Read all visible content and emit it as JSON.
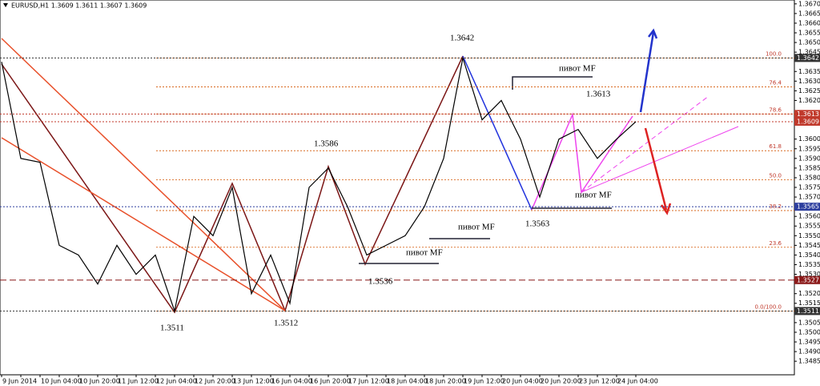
{
  "chart_data": {
    "type": "line",
    "title": "EURUSD,H1  1.3609 1.3611 1.3607 1.3609",
    "x": [
      "9 Jun 2014",
      null,
      "10 Jun 04:00",
      null,
      "10 Jun 20:00",
      null,
      "11 Jun 12:00",
      null,
      "12 Jun 04:00",
      null,
      "12 Jun 20:00",
      null,
      "13 Jun 12:00",
      null,
      "16 Jun 04:00",
      null,
      "16 Jun 20:00",
      null,
      "17 Jun 12:00",
      null,
      "18 Jun 04:00",
      null,
      "18 Jun 20:00",
      null,
      "19 Jun 12:00",
      null,
      "20 Jun 04:00",
      null,
      "20 Jun 20:00",
      null,
      "23 Jun 12:00",
      null,
      "24 Jun 04:00",
      null
    ],
    "series": [
      {
        "name": "EURUSD,H1",
        "color": "#000000",
        "values": [
          1.364,
          1.359,
          1.3588,
          1.3545,
          1.354,
          1.3525,
          1.3545,
          1.353,
          1.354,
          1.3511,
          1.356,
          1.355,
          1.3575,
          1.352,
          1.354,
          1.3515,
          1.3575,
          1.3585,
          1.3565,
          1.354,
          1.3545,
          1.355,
          1.3565,
          1.359,
          1.3642,
          1.361,
          1.362,
          1.36,
          1.357,
          1.36,
          1.3605,
          1.359,
          1.36,
          1.3609
        ]
      }
    ],
    "ylim": [
      1.3478,
      1.3672
    ],
    "yticks": [
      {
        "value": 1.367,
        "label": "1.3670"
      },
      {
        "value": 1.3665,
        "label": "1.3665"
      },
      {
        "value": 1.366,
        "label": "1.3660"
      },
      {
        "value": 1.3655,
        "label": "1.3655"
      },
      {
        "value": 1.365,
        "label": "1.3650"
      },
      {
        "value": 1.3645,
        "label": "1.3645"
      },
      {
        "value": 1.3635,
        "label": "1.3635"
      },
      {
        "value": 1.363,
        "label": "1.3630"
      },
      {
        "value": 1.3625,
        "label": "1.3625"
      },
      {
        "value": 1.362,
        "label": "1.3620"
      },
      {
        "value": 1.36,
        "label": "1.3600"
      },
      {
        "value": 1.3595,
        "label": "1.3595"
      },
      {
        "value": 1.359,
        "label": "1.3590"
      },
      {
        "value": 1.3585,
        "label": "1.3585"
      },
      {
        "value": 1.358,
        "label": "1.3580"
      },
      {
        "value": 1.3575,
        "label": "1.3575"
      },
      {
        "value": 1.357,
        "label": "1.3570"
      },
      {
        "value": 1.356,
        "label": "1.3560"
      },
      {
        "value": 1.3555,
        "label": "1.3555"
      },
      {
        "value": 1.355,
        "label": "1.3550"
      },
      {
        "value": 1.3545,
        "label": "1.3545"
      },
      {
        "value": 1.354,
        "label": "1.3540"
      },
      {
        "value": 1.3535,
        "label": "1.3535"
      },
      {
        "value": 1.353,
        "label": "1.3530"
      },
      {
        "value": 1.352,
        "label": "1.3520"
      },
      {
        "value": 1.3515,
        "label": "1.3515"
      },
      {
        "value": 1.3505,
        "label": "1.3505"
      },
      {
        "value": 1.35,
        "label": "1.3500"
      },
      {
        "value": 1.3495,
        "label": "1.3495"
      },
      {
        "value": 1.349,
        "label": "1.3490"
      },
      {
        "value": 1.3485,
        "label": "1.3485"
      }
    ],
    "price_lines": [
      {
        "value": 1.3642,
        "color": "#333333"
      },
      {
        "value": 1.3613,
        "color": "#c0392b"
      },
      {
        "value": 1.3609,
        "color": "#c0392b"
      },
      {
        "value": 1.3565,
        "color": "#2c3e9e"
      },
      {
        "value": 1.3527,
        "color": "#8b1a1a"
      },
      {
        "value": 1.3511,
        "color": "#333333"
      }
    ],
    "fib_levels": [
      {
        "value": 1.3642,
        "label": "100.0"
      },
      {
        "value": 1.3627,
        "label": "76.4"
      },
      {
        "value": 1.3613,
        "label": "78.6"
      },
      {
        "value": 1.3594,
        "label": "61.8"
      },
      {
        "value": 1.3579,
        "label": "50.0"
      },
      {
        "value": 1.3563,
        "label": "38.2"
      },
      {
        "value": 1.3544,
        "label": "23.6"
      },
      {
        "value": 1.3511,
        "label": "0.0/100.0"
      }
    ],
    "annotations": [
      "1.3642",
      "1.3613",
      "1.3586",
      "1.3563",
      "1.3536",
      "1.3511",
      "1.3512",
      "пивот MF",
      "пивот MF",
      "пивот MF",
      "пивот MF"
    ]
  }
}
